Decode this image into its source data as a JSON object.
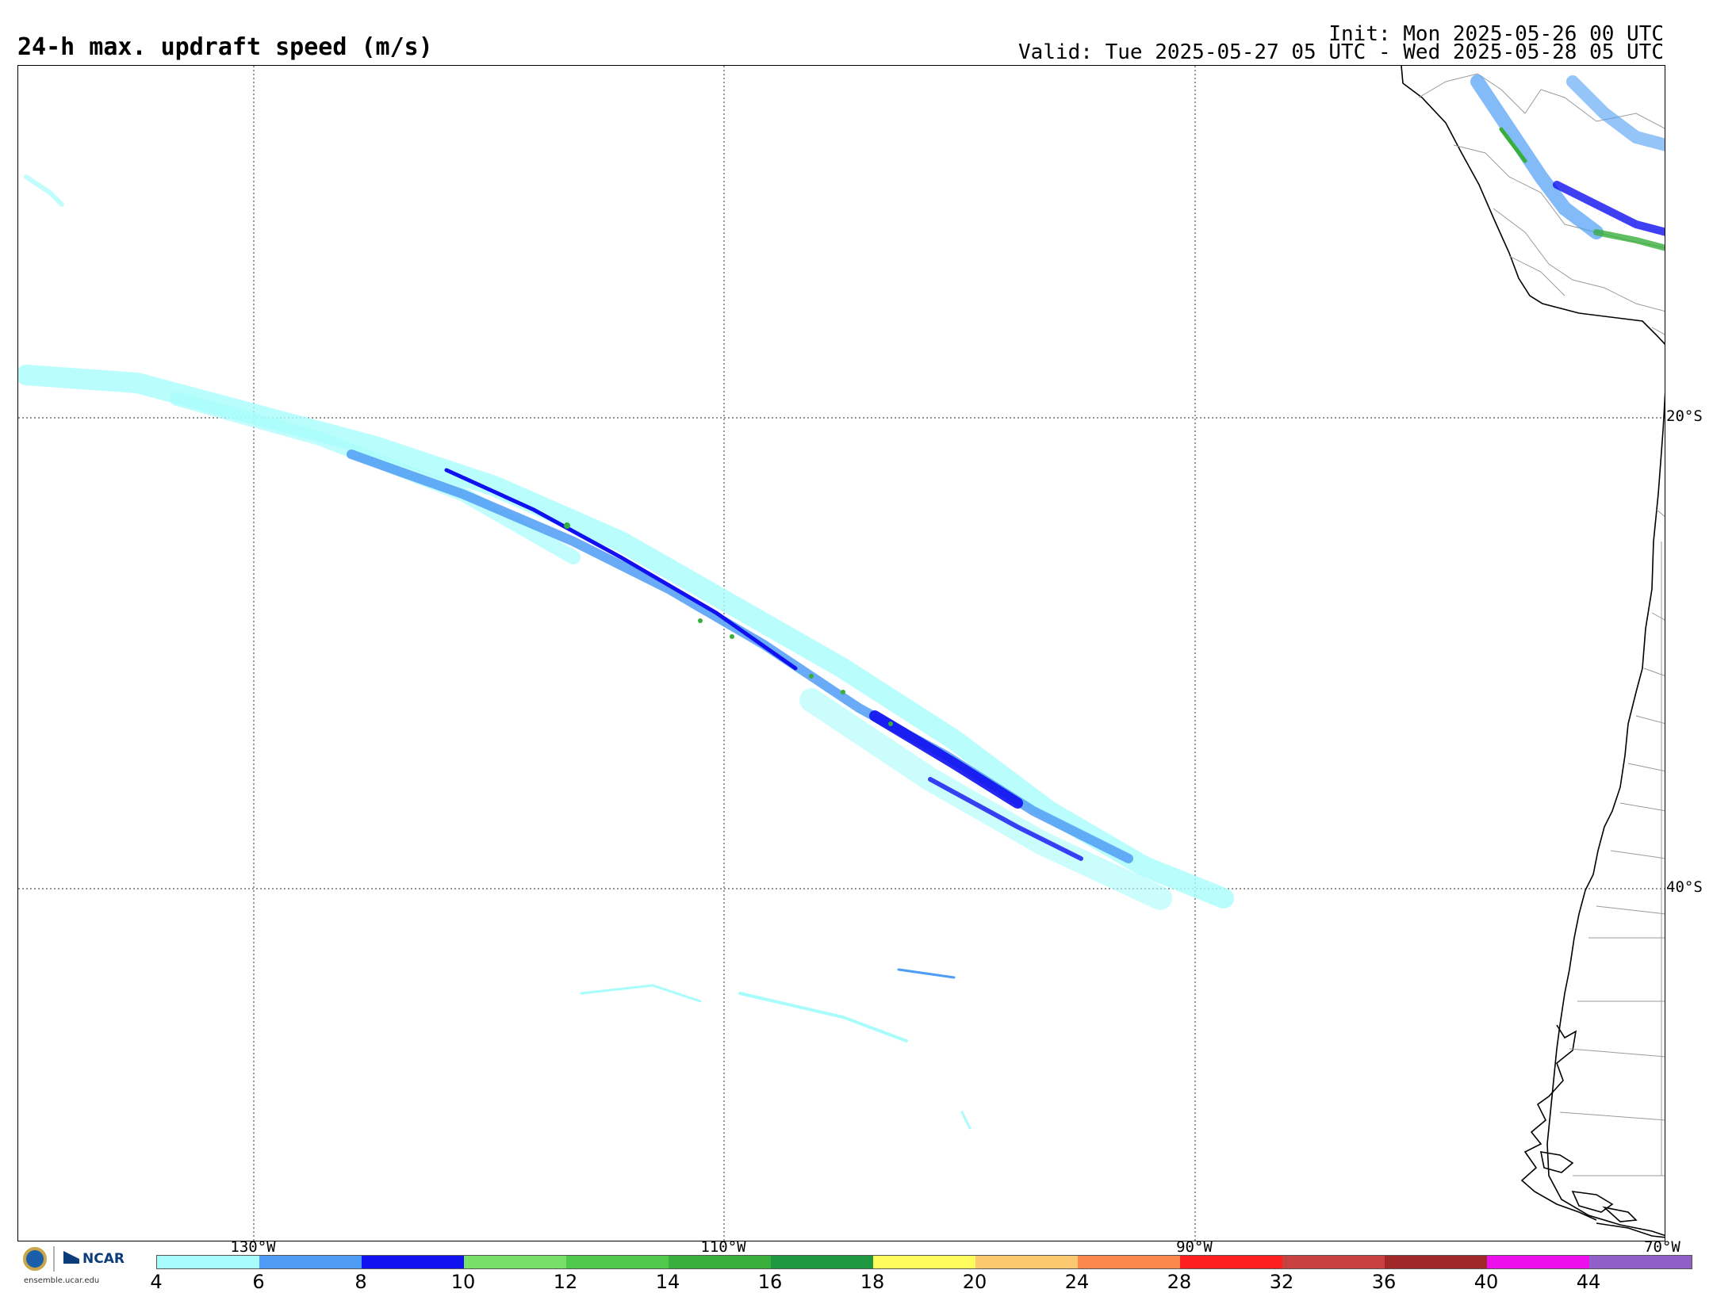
{
  "header": {
    "title": "24-h max. updraft speed (m/s)",
    "init": "Init: Mon 2025-05-26 00 UTC",
    "valid": "Valid: Tue 2025-05-27 05 UTC - Wed 2025-05-28 05 UTC"
  },
  "map": {
    "region": "Southeast Pacific / western South America",
    "latitude_labels": [
      "20°S",
      "40°S"
    ],
    "longitude_labels": [
      "130°W",
      "110°W",
      "90°W",
      "70°W"
    ],
    "gridlines": "dotted",
    "coastline_color": "#000000",
    "border_color": "#9a9a9a"
  },
  "colorbar": {
    "ticks": [
      "4",
      "6",
      "8",
      "10",
      "12",
      "14",
      "16",
      "18",
      "20",
      "24",
      "28",
      "32",
      "36",
      "40",
      "44"
    ],
    "colors": [
      "#a8fcfc",
      "#4f9cf5",
      "#1010f0",
      "#78e068",
      "#50c84a",
      "#38ae3c",
      "#1f9640",
      "#fdfc5c",
      "#fcc870",
      "#fc8850",
      "#fc2020",
      "#c84040",
      "#a02828",
      "#ec10ec",
      "#9060c8"
    ]
  },
  "logos": {
    "nsf": "NSF",
    "ncar": "NCAR",
    "url": "ensemble.ucar.edu"
  }
}
